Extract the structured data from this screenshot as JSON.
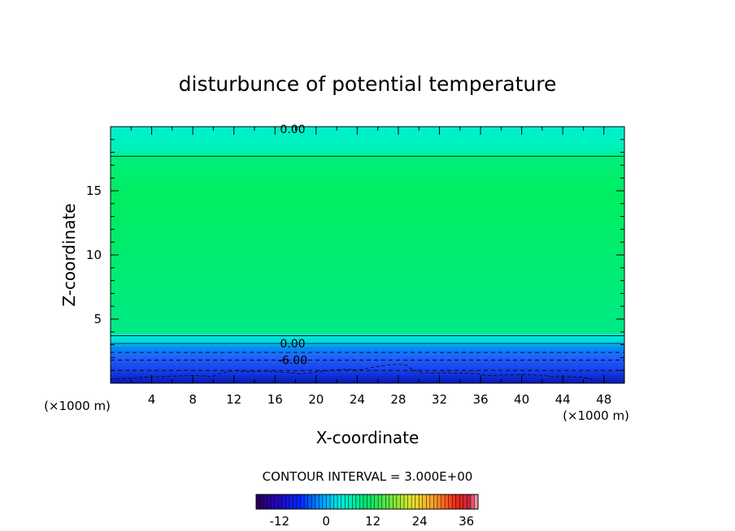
{
  "chart_data": {
    "type": "heatmap",
    "title": "disturbunce of potential temperature",
    "xlabel": "X-coordinate",
    "ylabel": "Z-coordinate",
    "x_unit": "(×1000 m)",
    "y_unit": "(×1000 m)",
    "xlim": [
      0,
      50
    ],
    "ylim": [
      0,
      20
    ],
    "x_ticks": [
      "4",
      "8",
      "12",
      "16",
      "20",
      "24",
      "28",
      "32",
      "36",
      "40",
      "44",
      "48"
    ],
    "y_ticks": [
      "5",
      "10",
      "15"
    ],
    "contour_interval_label": "CONTOUR INTERVAL = 3.000E+00",
    "contour_labels": [
      {
        "text": "0.00",
        "z": 19.8
      },
      {
        "text": "0.00",
        "z": 3.1
      },
      {
        "text": "-6.00",
        "z": 1.8
      }
    ],
    "colorbar": {
      "range": [
        -18,
        39
      ],
      "ticks": [
        "-12",
        "0",
        "12",
        "24",
        "36"
      ],
      "tick_values": [
        -12,
        0,
        12,
        24,
        36
      ]
    },
    "field_profile": [
      {
        "z": 0.0,
        "value": -15
      },
      {
        "z": 0.6,
        "value": -12
      },
      {
        "z": 1.2,
        "value": -9
      },
      {
        "z": 1.8,
        "value": -6
      },
      {
        "z": 2.4,
        "value": -3
      },
      {
        "z": 3.1,
        "value": 0
      },
      {
        "z": 3.7,
        "value": 1
      },
      {
        "z": 8.0,
        "value": 2.5
      },
      {
        "z": 12.0,
        "value": 3
      },
      {
        "z": 15.0,
        "value": 3.4
      },
      {
        "z": 17.7,
        "value": 2.4
      },
      {
        "z": 19.8,
        "value": 0
      }
    ],
    "colors": {
      "top_band": "#00f2c8",
      "mid_field": "#00ea76",
      "core_field": "#00f05a",
      "cold_band": "#1440f0",
      "deep_cold": "#0010c0"
    }
  }
}
